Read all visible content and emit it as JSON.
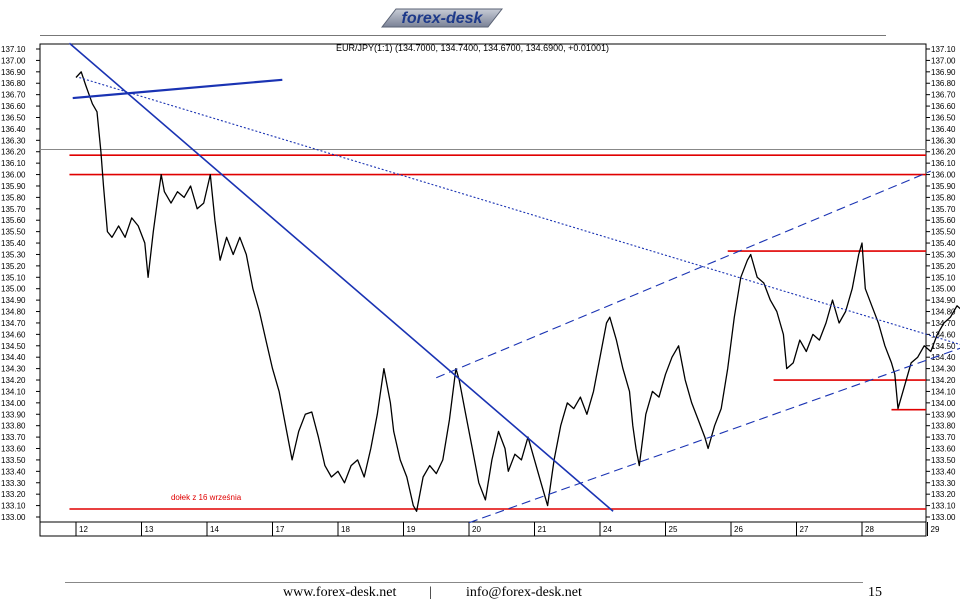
{
  "header": {
    "logo_text": "forex-desk"
  },
  "footer": {
    "website": "www.forex-desk.net",
    "separator": "|",
    "email": "info@forex-desk.net",
    "page_number": "15"
  },
  "chart_data": {
    "type": "line",
    "title": "EUR/JPY(1:1) (134.7000, 134.7400, 134.6700, 134.6900, +0.01001)",
    "xlabel": "",
    "ylabel": "",
    "ylim": [
      133.0,
      137.1
    ],
    "y_ticks": [
      "137.10",
      "137.00",
      "136.90",
      "136.80",
      "136.70",
      "136.60",
      "136.50",
      "136.40",
      "136.30",
      "136.20",
      "136.10",
      "136.00",
      "135.90",
      "135.80",
      "135.70",
      "135.60",
      "135.50",
      "135.40",
      "135.30",
      "135.20",
      "135.10",
      "135.00",
      "134.90",
      "134.80",
      "134.70",
      "134.60",
      "134.50",
      "134.40",
      "134.30",
      "134.20",
      "134.10",
      "134.00",
      "133.90",
      "133.80",
      "133.70",
      "133.60",
      "133.50",
      "133.40",
      "133.30",
      "133.20",
      "133.10",
      "133.00"
    ],
    "x_ticks": [
      {
        "label": "12",
        "t": 0.55
      },
      {
        "label": "13",
        "t": 1.55
      },
      {
        "label": "14",
        "t": 2.55
      },
      {
        "label": "17",
        "t": 3.55
      },
      {
        "label": "18",
        "t": 4.55
      },
      {
        "label": "19",
        "t": 5.55
      },
      {
        "label": "20",
        "t": 6.55
      },
      {
        "label": "21",
        "t": 7.55
      },
      {
        "label": "24",
        "t": 8.55
      },
      {
        "label": "25",
        "t": 9.55
      },
      {
        "label": "26",
        "t": 10.55
      },
      {
        "label": "27",
        "t": 11.55
      },
      {
        "label": "28",
        "t": 12.55
      },
      {
        "label": "29",
        "t": 13.55
      }
    ],
    "xlim": [
      0,
      13.85
    ],
    "series": [
      {
        "color": "#000000",
        "points": [
          [
            0.0,
            136.85
          ],
          [
            0.08,
            136.9
          ],
          [
            0.15,
            136.78
          ],
          [
            0.2,
            136.7
          ],
          [
            0.25,
            136.62
          ],
          [
            0.32,
            136.55
          ],
          [
            0.38,
            136.2
          ],
          [
            0.42,
            135.9
          ],
          [
            0.48,
            135.5
          ],
          [
            0.55,
            135.45
          ],
          [
            0.65,
            135.55
          ],
          [
            0.75,
            135.45
          ],
          [
            0.85,
            135.62
          ],
          [
            0.95,
            135.55
          ],
          [
            1.05,
            135.4
          ],
          [
            1.1,
            135.1
          ],
          [
            1.18,
            135.5
          ],
          [
            1.25,
            135.8
          ],
          [
            1.3,
            136.0
          ],
          [
            1.35,
            135.85
          ],
          [
            1.45,
            135.75
          ],
          [
            1.55,
            135.85
          ],
          [
            1.65,
            135.8
          ],
          [
            1.75,
            135.9
          ],
          [
            1.85,
            135.7
          ],
          [
            1.95,
            135.75
          ],
          [
            2.05,
            136.0
          ],
          [
            2.12,
            135.6
          ],
          [
            2.2,
            135.25
          ],
          [
            2.3,
            135.45
          ],
          [
            2.4,
            135.3
          ],
          [
            2.5,
            135.45
          ],
          [
            2.6,
            135.3
          ],
          [
            2.7,
            135.0
          ],
          [
            2.8,
            134.8
          ],
          [
            2.9,
            134.55
          ],
          [
            3.0,
            134.3
          ],
          [
            3.1,
            134.1
          ],
          [
            3.2,
            133.8
          ],
          [
            3.3,
            133.5
          ],
          [
            3.4,
            133.75
          ],
          [
            3.5,
            133.9
          ],
          [
            3.6,
            133.92
          ],
          [
            3.7,
            133.7
          ],
          [
            3.8,
            133.45
          ],
          [
            3.9,
            133.35
          ],
          [
            4.0,
            133.4
          ],
          [
            4.1,
            133.3
          ],
          [
            4.2,
            133.45
          ],
          [
            4.3,
            133.5
          ],
          [
            4.4,
            133.35
          ],
          [
            4.5,
            133.6
          ],
          [
            4.6,
            133.9
          ],
          [
            4.7,
            134.3
          ],
          [
            4.8,
            134.0
          ],
          [
            4.85,
            133.75
          ],
          [
            4.95,
            133.5
          ],
          [
            5.05,
            133.35
          ],
          [
            5.15,
            133.1
          ],
          [
            5.2,
            133.05
          ],
          [
            5.3,
            133.35
          ],
          [
            5.4,
            133.45
          ],
          [
            5.5,
            133.38
          ],
          [
            5.6,
            133.5
          ],
          [
            5.7,
            133.85
          ],
          [
            5.8,
            134.3
          ],
          [
            5.85,
            134.2
          ],
          [
            5.95,
            133.9
          ],
          [
            6.05,
            133.6
          ],
          [
            6.15,
            133.3
          ],
          [
            6.25,
            133.15
          ],
          [
            6.35,
            133.5
          ],
          [
            6.45,
            133.75
          ],
          [
            6.55,
            133.6
          ],
          [
            6.6,
            133.4
          ],
          [
            6.7,
            133.55
          ],
          [
            6.8,
            133.5
          ],
          [
            6.9,
            133.7
          ],
          [
            7.0,
            133.5
          ],
          [
            7.1,
            133.3
          ],
          [
            7.2,
            133.1
          ],
          [
            7.3,
            133.5
          ],
          [
            7.4,
            133.8
          ],
          [
            7.5,
            134.0
          ],
          [
            7.6,
            133.95
          ],
          [
            7.7,
            134.05
          ],
          [
            7.8,
            133.9
          ],
          [
            7.9,
            134.1
          ],
          [
            8.0,
            134.4
          ],
          [
            8.1,
            134.7
          ],
          [
            8.15,
            134.75
          ],
          [
            8.25,
            134.55
          ],
          [
            8.35,
            134.3
          ],
          [
            8.45,
            134.1
          ],
          [
            8.5,
            133.8
          ],
          [
            8.55,
            133.6
          ],
          [
            8.6,
            133.45
          ],
          [
            8.7,
            133.9
          ],
          [
            8.8,
            134.1
          ],
          [
            8.9,
            134.05
          ],
          [
            9.0,
            134.25
          ],
          [
            9.1,
            134.4
          ],
          [
            9.2,
            134.5
          ],
          [
            9.3,
            134.2
          ],
          [
            9.4,
            134.0
          ],
          [
            9.5,
            133.85
          ],
          [
            9.6,
            133.7
          ],
          [
            9.65,
            133.6
          ],
          [
            9.75,
            133.8
          ],
          [
            9.85,
            133.95
          ],
          [
            9.95,
            134.3
          ],
          [
            10.05,
            134.75
          ],
          [
            10.15,
            135.1
          ],
          [
            10.25,
            135.25
          ],
          [
            10.3,
            135.3
          ],
          [
            10.4,
            135.1
          ],
          [
            10.5,
            135.05
          ],
          [
            10.6,
            134.9
          ],
          [
            10.7,
            134.8
          ],
          [
            10.8,
            134.6
          ],
          [
            10.85,
            134.3
          ],
          [
            10.95,
            134.35
          ],
          [
            11.05,
            134.55
          ],
          [
            11.15,
            134.45
          ],
          [
            11.25,
            134.6
          ],
          [
            11.35,
            134.55
          ],
          [
            11.45,
            134.7
          ],
          [
            11.55,
            134.9
          ],
          [
            11.65,
            134.7
          ],
          [
            11.75,
            134.8
          ],
          [
            11.85,
            135.0
          ],
          [
            11.95,
            135.3
          ],
          [
            12.0,
            135.4
          ],
          [
            12.05,
            135.0
          ],
          [
            12.15,
            134.85
          ],
          [
            12.25,
            134.7
          ],
          [
            12.35,
            134.5
          ],
          [
            12.45,
            134.35
          ],
          [
            12.5,
            134.25
          ],
          [
            12.55,
            133.95
          ],
          [
            12.65,
            134.15
          ],
          [
            12.75,
            134.35
          ],
          [
            12.85,
            134.4
          ],
          [
            12.95,
            134.5
          ],
          [
            13.05,
            134.45
          ],
          [
            13.15,
            134.6
          ],
          [
            13.25,
            134.7
          ],
          [
            13.35,
            134.75
          ],
          [
            13.45,
            134.85
          ],
          [
            13.55,
            134.8
          ],
          [
            13.65,
            134.72
          ],
          [
            13.7,
            134.69
          ]
        ]
      }
    ],
    "trendlines": [
      {
        "color": "#1a33b3",
        "style": "solid",
        "width": 1.6,
        "from": [
          -0.1,
          137.15
        ],
        "to": [
          8.2,
          133.05
        ]
      },
      {
        "color": "#1a33b3",
        "style": "solid",
        "width": 2.2,
        "from": [
          -0.05,
          136.67
        ],
        "to": [
          3.15,
          136.83
        ]
      },
      {
        "color": "#1a33b3",
        "style": "dotted",
        "width": 1.1,
        "from": [
          0.05,
          136.85
        ],
        "to": [
          13.85,
          134.45
        ]
      },
      {
        "color": "#1a33b3",
        "style": "dashed",
        "width": 1.1,
        "from": [
          5.5,
          134.22
        ],
        "to": [
          13.05,
          136.03
        ]
      },
      {
        "color": "#1a33b3",
        "style": "dashed",
        "width": 1.1,
        "from": [
          6.0,
          132.95
        ],
        "to": [
          13.85,
          134.55
        ]
      }
    ],
    "support_resistance": [
      {
        "color": "#e00000",
        "y": 136.17,
        "x_from": -0.1,
        "x_to": 13.85
      },
      {
        "color": "#e00000",
        "y": 136.0,
        "x_from": -0.1,
        "x_to": 13.85
      },
      {
        "color": "#e00000",
        "y": 135.33,
        "x_from": 9.95,
        "x_to": 13.85
      },
      {
        "color": "#e00000",
        "y": 134.2,
        "x_from": 10.65,
        "x_to": 13.85
      },
      {
        "color": "#e00000",
        "y": 133.94,
        "x_from": 12.45,
        "x_to": 13.85
      },
      {
        "color": "#e00000",
        "y": 133.07,
        "x_from": -0.1,
        "x_to": 13.85
      }
    ],
    "reference_line": {
      "color": "#888888",
      "y": 136.22
    },
    "annotations": [
      {
        "text": "dołek z 16 września",
        "color": "#e00000",
        "x": 1.45,
        "y": 133.15
      }
    ],
    "grid": true
  }
}
